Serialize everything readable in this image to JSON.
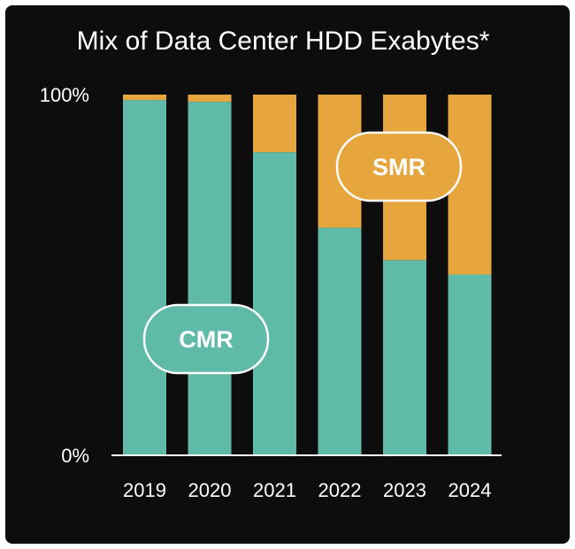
{
  "chart_data": {
    "type": "bar",
    "stacked": true,
    "title": "Mix of Data Center HDD Exabytes*",
    "categories": [
      "2019",
      "2020",
      "2021",
      "2022",
      "2023",
      "2024"
    ],
    "series": [
      {
        "name": "CMR",
        "values": [
          98.5,
          98,
          84,
          63,
          54,
          50
        ],
        "color": "#5fbaa7"
      },
      {
        "name": "SMR",
        "values": [
          1.5,
          2,
          16,
          37,
          46,
          50
        ],
        "color": "#e6a53d"
      }
    ],
    "y_tick_labels": [
      "0%",
      "100%"
    ],
    "ylim": [
      0,
      100
    ],
    "grid": false
  }
}
